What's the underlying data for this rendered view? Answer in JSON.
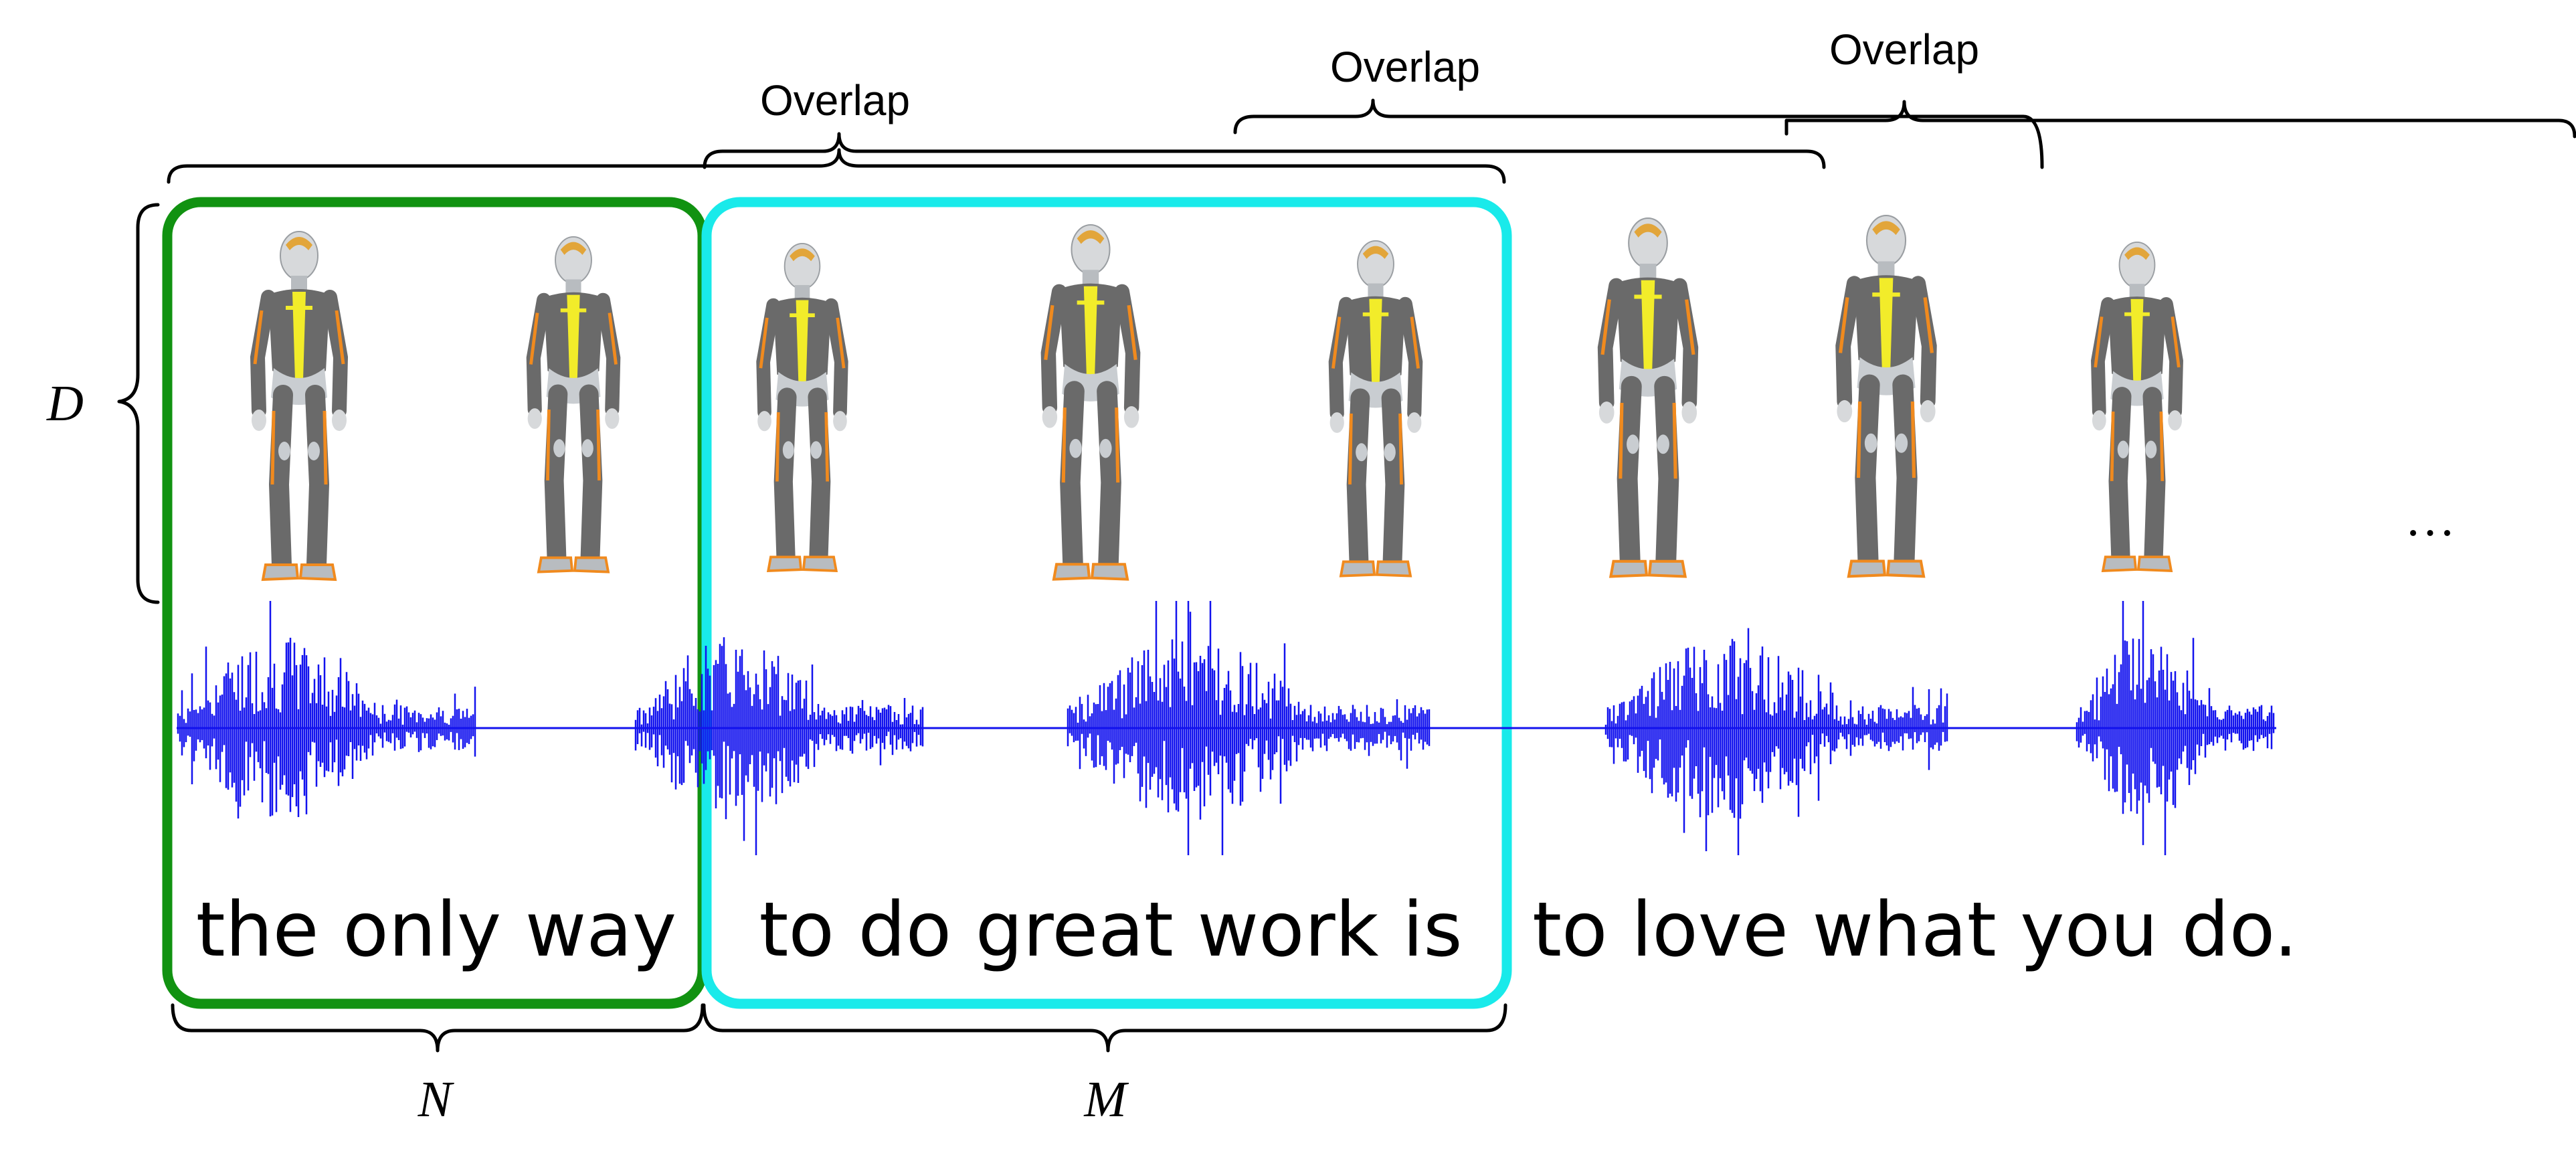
{
  "overlap_labels": [
    "Overlap",
    "Overlap",
    "Overlap"
  ],
  "segments": {
    "first": "the only way",
    "second": "to do great work is",
    "third": "to love what you do."
  },
  "symbols": {
    "d": "D",
    "n": "N",
    "m": "M"
  },
  "ellipsis": "…",
  "colors": {
    "segment_n_border": "#119211",
    "segment_m_border": "#19EAEA",
    "waveform": "#1212EE",
    "suit_body": "#6A6A6A",
    "suit_accent": "#F08A1E",
    "suit_stripe": "#F2EC2A",
    "skin": "#D7D9DB"
  }
}
